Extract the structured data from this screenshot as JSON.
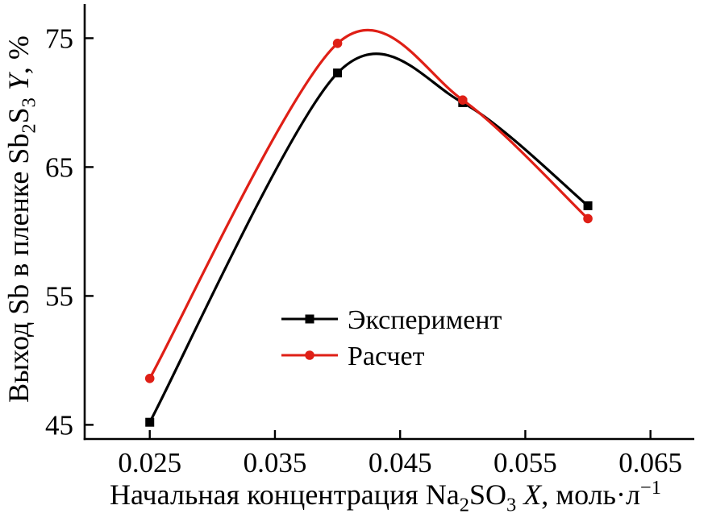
{
  "chart_data": {
    "type": "line",
    "title": "",
    "xlabel": "Начальная концентрация Na₂SO₃ X, моль·л⁻¹",
    "ylabel": "Выход Sb в пленке Sb₂S₃ Y, %",
    "xlabel_segments": [
      {
        "t": "Начальная концентрация Na"
      },
      {
        "t": "2",
        "sub": true
      },
      {
        "t": "SO"
      },
      {
        "t": "3",
        "sub": true
      },
      {
        "t": " "
      },
      {
        "t": "X",
        "i": true
      },
      {
        "t": ", моль·л"
      },
      {
        "t": "−1",
        "sup": true
      }
    ],
    "ylabel_segments": [
      {
        "t": "Выход Sb в пленке Sb"
      },
      {
        "t": "2",
        "sub": true
      },
      {
        "t": "S"
      },
      {
        "t": "3",
        "sub": true
      },
      {
        "t": " "
      },
      {
        "t": "Y",
        "i": true
      },
      {
        "t": ", %"
      }
    ],
    "xlim": [
      0.0198,
      0.0685
    ],
    "ylim": [
      43.9,
      77.65
    ],
    "x_ticks": [
      0.025,
      0.035,
      0.045,
      0.055,
      0.065
    ],
    "x_tick_labels": [
      "0.025",
      "0.035",
      "0.045",
      "0.055",
      "0.065"
    ],
    "y_ticks": [
      45,
      55,
      65,
      75
    ],
    "y_tick_labels": [
      "45",
      "55",
      "65",
      "75"
    ],
    "grid": false,
    "legend_position": "inside-lower-center",
    "series": [
      {
        "name": "Эксперимент",
        "color": "#000000",
        "marker": "square",
        "x": [
          0.025,
          0.04,
          0.05,
          0.06
        ],
        "y": [
          45.2,
          72.3,
          70.0,
          62.0
        ]
      },
      {
        "name": "Расчет",
        "color": "#df1f16",
        "marker": "circle",
        "x": [
          0.025,
          0.04,
          0.05,
          0.06
        ],
        "y": [
          48.6,
          74.6,
          70.2,
          61.0
        ]
      }
    ]
  }
}
